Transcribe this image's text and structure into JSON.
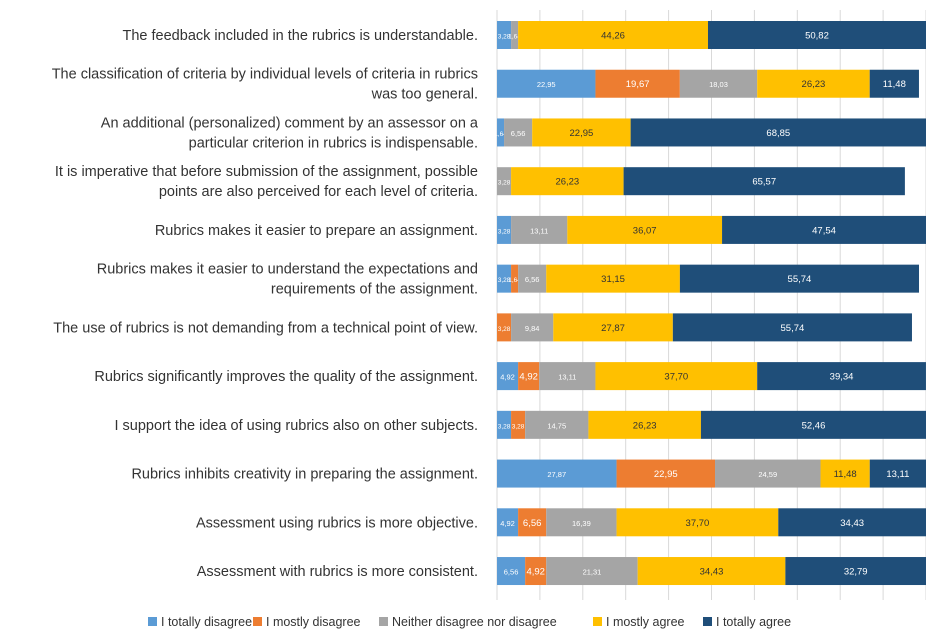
{
  "chart_data": {
    "type": "bar",
    "orientation": "horizontal",
    "stacked": true,
    "grid": true,
    "legend_position": "bottom",
    "categories": [
      [
        "The feedback included in the rubrics is understandable."
      ],
      [
        "The classification of criteria by individual levels of criteria in rubrics",
        "was too general."
      ],
      [
        "An additional (personalized) comment by an assessor on a",
        "particular criterion in rubrics is indispensable."
      ],
      [
        "It is imperative that before submission of the assignment, possible",
        "points are also perceived for each level of criteria."
      ],
      [
        "Rubrics makes it easier to prepare an assignment."
      ],
      [
        "Rubrics makes it easier to understand the expectations and",
        "requirements of the assignment."
      ],
      [
        "The use of rubrics is not demanding from a technical point of view."
      ],
      [
        "Rubrics significantly improves the quality of the assignment."
      ],
      [
        "I support the idea of using rubrics also on other subjects."
      ],
      [
        "Rubrics inhibits creativity in preparing the assignment."
      ],
      [
        "Assessment using rubrics is more objective."
      ],
      [
        "Assessment with rubrics is more consistent."
      ]
    ],
    "series": [
      {
        "name": "I totally disagree",
        "color": "#5B9BD5",
        "values": [
          3.28,
          22.95,
          1.64,
          0,
          3.28,
          3.28,
          0,
          4.92,
          3.28,
          27.87,
          4.92,
          6.56
        ],
        "labels": [
          "3,28",
          "22,95",
          "1,64",
          "",
          "3,28",
          "3,28",
          "",
          "4,92",
          "3,28",
          "27,87",
          "4,92",
          "6,56"
        ]
      },
      {
        "name": "I mostly disagree",
        "color": "#ED7D31",
        "values": [
          0,
          19.67,
          0,
          0,
          0,
          1.64,
          3.28,
          4.92,
          3.28,
          22.95,
          6.56,
          4.92
        ],
        "labels": [
          "",
          "19,67",
          "",
          "",
          "",
          "1,64",
          "3,28",
          "4,92",
          "3,28",
          "22,95",
          "6,56",
          "4,92"
        ]
      },
      {
        "name": "Neither disagree nor disagree",
        "color": "#A5A5A5",
        "values": [
          1.64,
          18.03,
          6.56,
          3.28,
          13.11,
          6.56,
          9.84,
          13.11,
          14.75,
          24.59,
          16.39,
          21.31
        ],
        "labels": [
          "1,64",
          "18,03",
          "6,56",
          "3,28",
          "13,11",
          "6,56",
          "9,84",
          "13,11",
          "14,75",
          "24,59",
          "16,39",
          "21,31"
        ]
      },
      {
        "name": "I mostly agree",
        "color": "#FFC000",
        "values": [
          44.26,
          26.23,
          22.95,
          26.23,
          36.07,
          31.15,
          27.87,
          37.7,
          26.23,
          11.48,
          37.7,
          34.43
        ],
        "labels": [
          "44,26",
          "26,23",
          "22,95",
          "26,23",
          "36,07",
          "31,15",
          "27,87",
          "37,70",
          "26,23",
          "11,48",
          "37,70",
          "34,43"
        ]
      },
      {
        "name": "I totally agree",
        "color": "#1F4E79",
        "values": [
          50.82,
          11.48,
          68.85,
          65.57,
          47.54,
          55.74,
          55.74,
          39.34,
          52.46,
          13.11,
          34.43,
          32.79
        ],
        "labels": [
          "50,82",
          "11,48",
          "68,85",
          "65,57",
          "47,54",
          "55,74",
          "55,74",
          "39,34",
          "52,46",
          "13,11",
          "34,43",
          "32,79"
        ]
      }
    ],
    "xlim": [
      0,
      100
    ]
  }
}
